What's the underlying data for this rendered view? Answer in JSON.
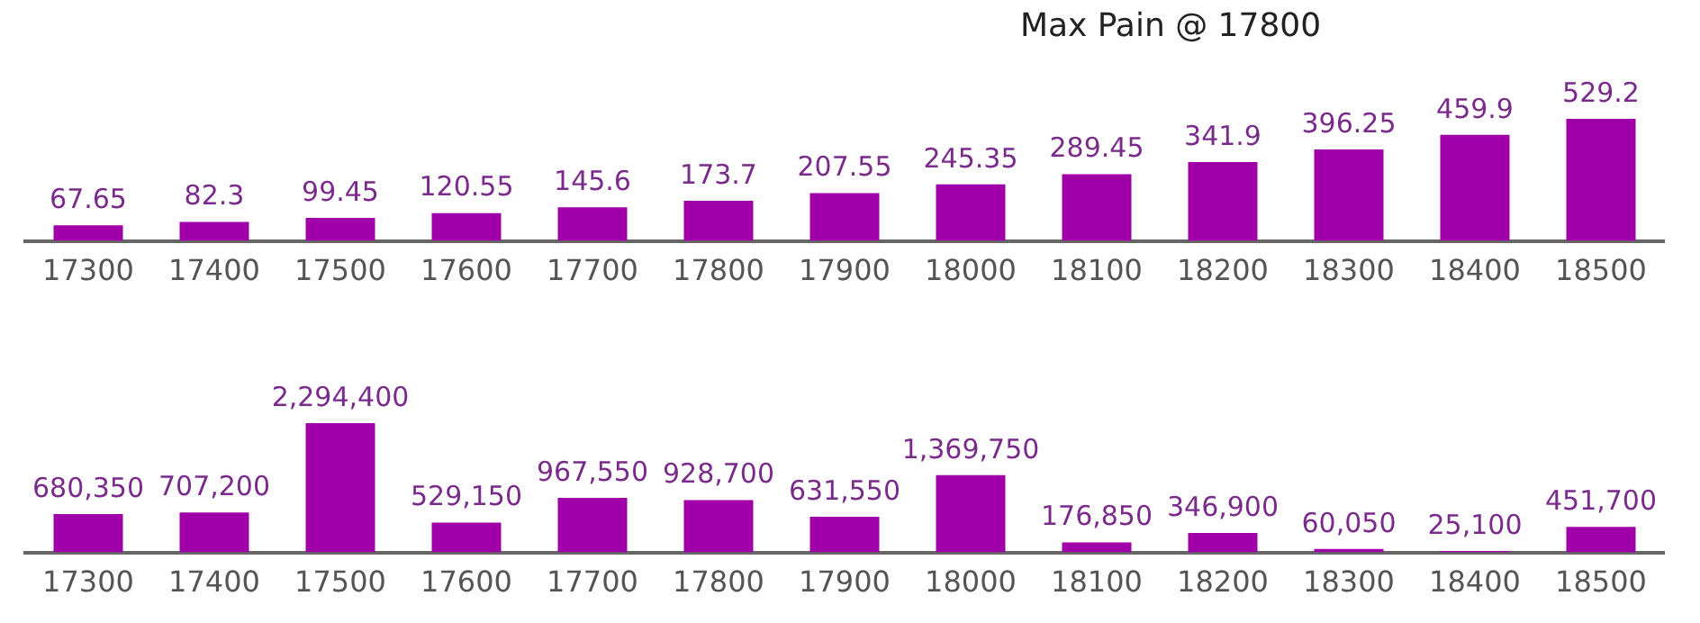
{
  "chart_data": [
    {
      "type": "bar",
      "title": "Max Pain @ 17800",
      "categories": [
        "17300",
        "17400",
        "17500",
        "17600",
        "17700",
        "17800",
        "17900",
        "18000",
        "18100",
        "18200",
        "18300",
        "18400",
        "18500"
      ],
      "values": [
        67.65,
        82.3,
        99.45,
        120.55,
        145.6,
        173.7,
        207.55,
        245.35,
        289.45,
        341.9,
        396.25,
        459.9,
        529.2
      ],
      "color": "#a000a8",
      "data_labels": true,
      "legend": false
    },
    {
      "type": "bar",
      "categories": [
        "17300",
        "17400",
        "17500",
        "17600",
        "17700",
        "17800",
        "17900",
        "18000",
        "18100",
        "18200",
        "18300",
        "18400",
        "18500"
      ],
      "values": [
        680350,
        707200,
        2294400,
        529150,
        967550,
        928700,
        631550,
        1369750,
        176850,
        346900,
        60050,
        25100,
        451700
      ],
      "color": "#a000a8",
      "value_labels": [
        "680,350",
        "707,200",
        "2,294,400",
        "529,150",
        "967,550",
        "928,700",
        "631,550",
        "1,369,750",
        "176,850",
        "346,900",
        "60,050",
        "25,100",
        "451,700"
      ],
      "legend": false
    }
  ]
}
